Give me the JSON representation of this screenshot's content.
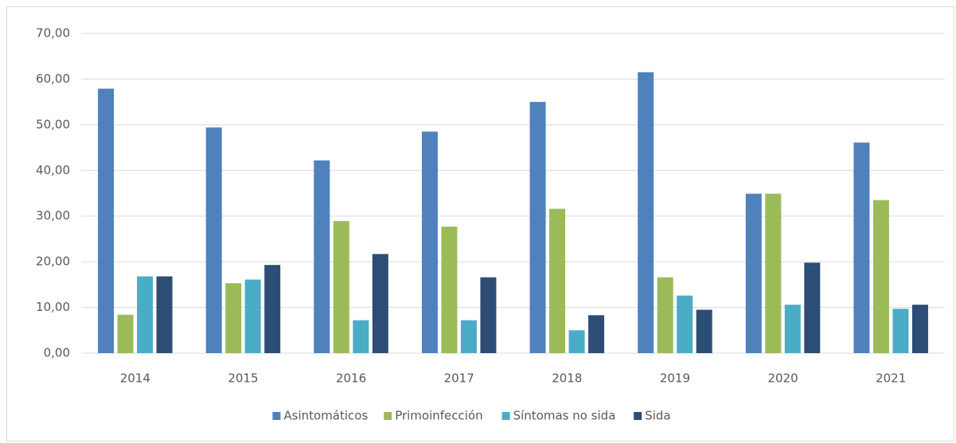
{
  "chart_data": {
    "type": "bar",
    "categories": [
      "2014",
      "2015",
      "2016",
      "2017",
      "2018",
      "2019",
      "2020",
      "2021"
    ],
    "series": [
      {
        "name": "Asintomáticos",
        "color": "#4f81bd",
        "values": [
          57.9,
          49.4,
          42.2,
          48.5,
          55.0,
          61.5,
          34.9,
          46.1
        ]
      },
      {
        "name": "Primoinfección",
        "color": "#9bbb59",
        "values": [
          8.4,
          15.3,
          28.9,
          27.7,
          31.6,
          16.6,
          34.9,
          33.5
        ]
      },
      {
        "name": "Síntomas no sida",
        "color": "#4bacc6",
        "values": [
          16.8,
          16.1,
          7.2,
          7.2,
          5.0,
          12.6,
          10.6,
          9.7
        ]
      },
      {
        "name": "Sida",
        "color": "#2c4d75",
        "values": [
          16.8,
          19.3,
          21.7,
          16.6,
          8.3,
          9.5,
          19.8,
          10.6
        ]
      }
    ],
    "ylim": [
      0,
      70
    ],
    "yticks": [
      {
        "value": 0,
        "label": "0,00"
      },
      {
        "value": 10,
        "label": "10,00"
      },
      {
        "value": 20,
        "label": "20,00"
      },
      {
        "value": 30,
        "label": "30,00"
      },
      {
        "value": 40,
        "label": "40,00"
      },
      {
        "value": 50,
        "label": "50,00"
      },
      {
        "value": 60,
        "label": "60,00"
      },
      {
        "value": 70,
        "label": "70,00"
      }
    ],
    "grid": true,
    "legend": "bottom"
  }
}
